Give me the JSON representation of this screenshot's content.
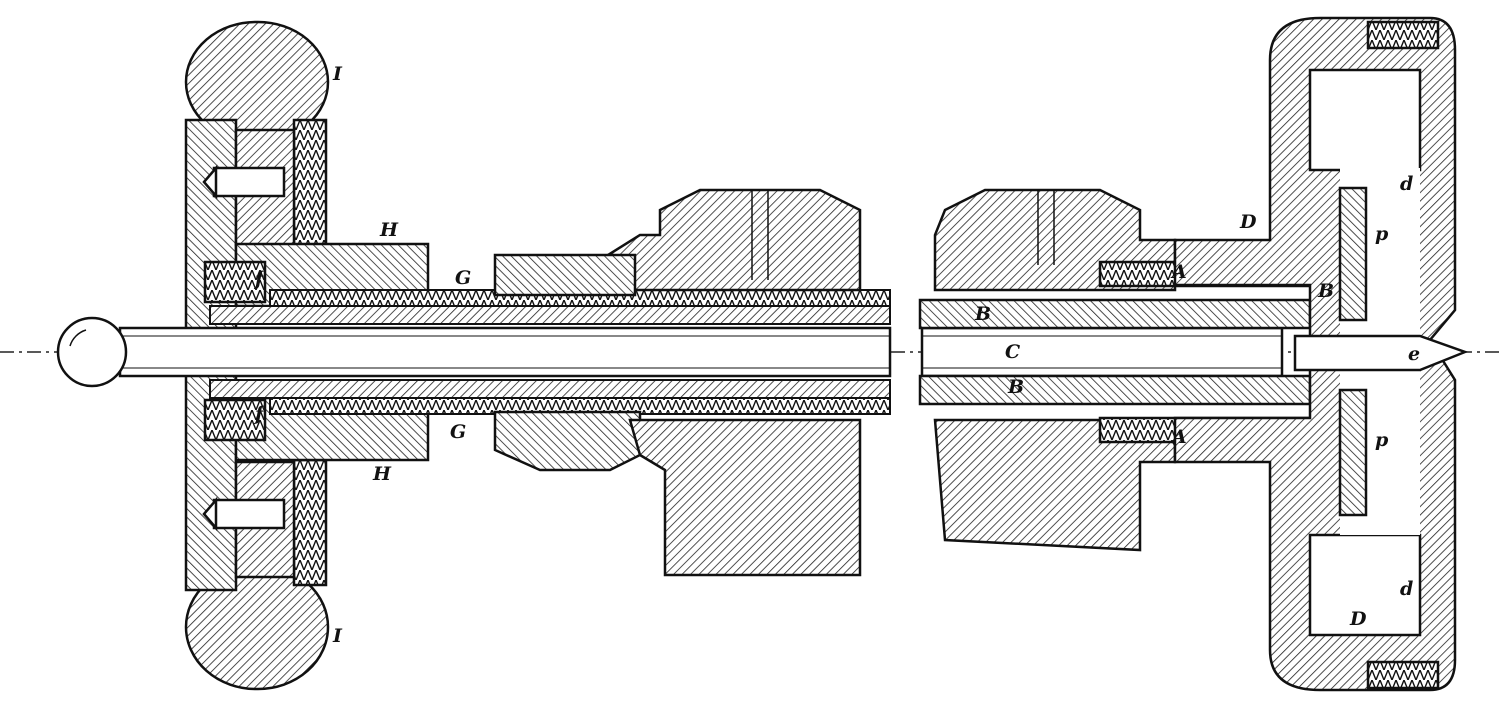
{
  "labels": {
    "I_top": "I",
    "I_bottom": "I",
    "H_top": "H",
    "H_bottom": "H",
    "f_top": "f",
    "f_bottom": "f",
    "G_top": "G",
    "G_bottom": "G",
    "A_top": "A",
    "A_bottom": "A",
    "B_upper": "B",
    "B_lower": "B",
    "B_right": "B",
    "C": "C",
    "D_top": "D",
    "D_bottom": "D",
    "d_top": "d",
    "d_bottom": "d",
    "p_top": "p",
    "p_bottom": "p",
    "e": "e"
  }
}
